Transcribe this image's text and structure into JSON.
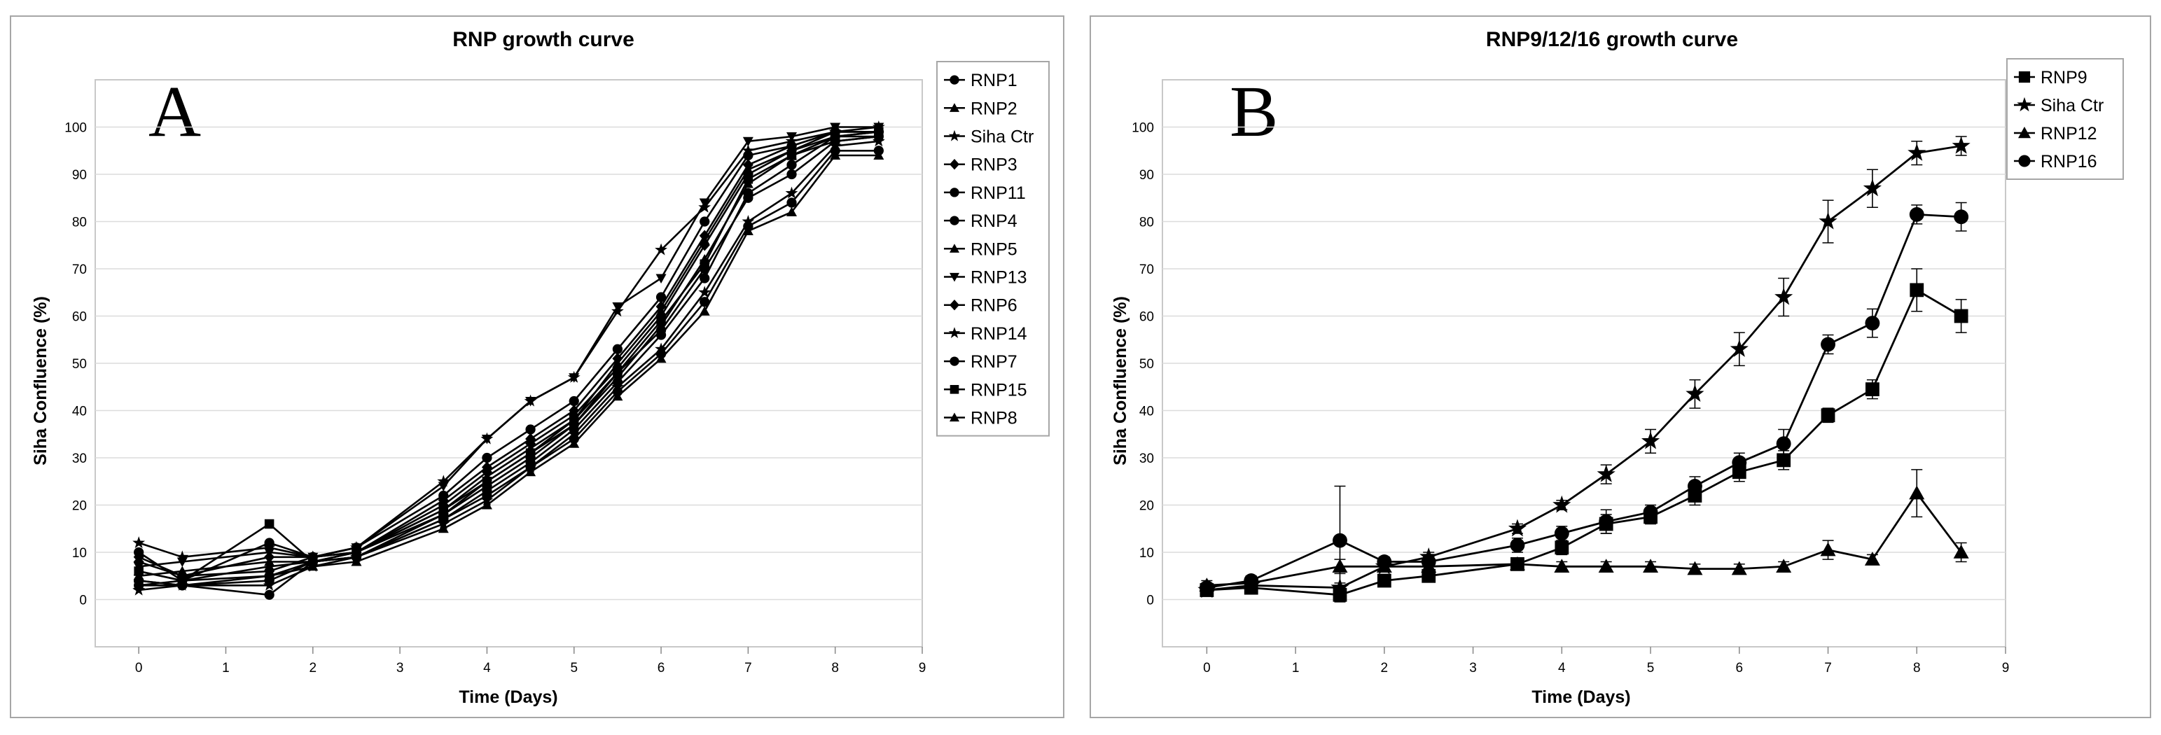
{
  "chart_data": [
    {
      "type": "line",
      "panel_letter": "A",
      "title": "RNP growth curve",
      "xlabel": "Time (Days)",
      "ylabel": "Siha Confluence (%)",
      "xlim": [
        -0.5,
        9
      ],
      "ylim": [
        -10,
        110
      ],
      "xticks": [
        0,
        1,
        2,
        3,
        4,
        5,
        6,
        7,
        8,
        9
      ],
      "yticks": [
        0,
        10,
        20,
        30,
        40,
        50,
        60,
        70,
        80,
        90,
        100
      ],
      "grid": true,
      "legend_position": "right",
      "x": [
        0,
        0.5,
        1.5,
        2,
        2.5,
        3.5,
        4,
        4.5,
        5,
        5.5,
        6,
        6.5,
        7,
        7.5,
        8,
        8.5
      ],
      "series": [
        {
          "name": "RNP1",
          "marker": "circle",
          "values": [
            4,
            3,
            4,
            8,
            9,
            17,
            23,
            29,
            36,
            46,
            56,
            68,
            86,
            92,
            98,
            99
          ]
        },
        {
          "name": "RNP2",
          "marker": "triangle",
          "values": [
            6,
            4,
            7,
            8,
            10,
            18,
            25,
            31,
            37,
            47,
            58,
            72,
            88,
            94,
            97,
            98
          ]
        },
        {
          "name": "Siha Ctr",
          "marker": "star",
          "values": [
            2,
            3,
            3,
            7,
            9,
            16,
            21,
            28,
            35,
            45,
            53,
            65,
            80,
            86,
            96,
            97
          ]
        },
        {
          "name": "RNP3",
          "marker": "diamond",
          "values": [
            8,
            5,
            6,
            9,
            10,
            20,
            27,
            33,
            39,
            49,
            60,
            75,
            90,
            95,
            99,
            99
          ]
        },
        {
          "name": "RNP11",
          "marker": "circle",
          "values": [
            10,
            4,
            12,
            9,
            11,
            22,
            30,
            36,
            42,
            53,
            64,
            80,
            94,
            96,
            99,
            99
          ]
        },
        {
          "name": "RNP4",
          "marker": "circle",
          "values": [
            3,
            3,
            5,
            8,
            9,
            18,
            24,
            30,
            37,
            48,
            57,
            70,
            85,
            90,
            97,
            98
          ]
        },
        {
          "name": "RNP5",
          "marker": "triangle",
          "values": [
            5,
            6,
            8,
            8,
            10,
            19,
            26,
            32,
            38,
            50,
            61,
            76,
            91,
            95,
            98,
            98
          ]
        },
        {
          "name": "RNP13",
          "marker": "triangle-down",
          "values": [
            7,
            8,
            10,
            9,
            11,
            24,
            34,
            42,
            47,
            62,
            68,
            84,
            97,
            98,
            100,
            100
          ]
        },
        {
          "name": "RNP6",
          "marker": "diamond",
          "values": [
            9,
            5,
            9,
            9,
            10,
            21,
            28,
            34,
            40,
            51,
            62,
            77,
            92,
            96,
            99,
            99
          ]
        },
        {
          "name": "RNP14",
          "marker": "star",
          "values": [
            12,
            9,
            11,
            9,
            11,
            25,
            34,
            42,
            47,
            61,
            74,
            83,
            95,
            97,
            99,
            100
          ]
        },
        {
          "name": "RNP7",
          "marker": "circle",
          "values": [
            4,
            3,
            1,
            8,
            9,
            17,
            22,
            28,
            34,
            44,
            52,
            63,
            79,
            84,
            95,
            95
          ]
        },
        {
          "name": "RNP15",
          "marker": "square",
          "values": [
            6,
            4,
            16,
            8,
            10,
            19,
            25,
            31,
            38,
            48,
            59,
            71,
            89,
            94,
            98,
            99
          ]
        },
        {
          "name": "RNP8",
          "marker": "triangle",
          "values": [
            3,
            4,
            5,
            7,
            8,
            15,
            20,
            27,
            33,
            43,
            51,
            61,
            78,
            82,
            94,
            94
          ]
        }
      ]
    },
    {
      "type": "line",
      "panel_letter": "B",
      "title": "RNP9/12/16 growth curve",
      "xlabel": "Time (Days)",
      "ylabel": "Siha Confluence (%)",
      "xlim": [
        -0.5,
        9
      ],
      "ylim": [
        -10,
        110
      ],
      "xticks": [
        0,
        1,
        2,
        3,
        4,
        5,
        6,
        7,
        8,
        9
      ],
      "yticks": [
        0,
        10,
        20,
        30,
        40,
        50,
        60,
        70,
        80,
        90,
        100
      ],
      "grid": true,
      "legend_position": "top-right",
      "x": [
        0,
        0.5,
        1.5,
        2,
        2.5,
        3.5,
        4,
        4.5,
        5,
        5.5,
        6,
        6.5,
        7,
        7.5,
        8,
        8.5
      ],
      "series": [
        {
          "name": "RNP9",
          "marker": "square",
          "values": [
            2,
            2.5,
            1,
            4,
            5,
            7.5,
            11,
            16,
            17.5,
            22,
            27,
            29.5,
            39,
            44.5,
            65.5,
            60
          ],
          "errors": [
            1,
            1,
            1.5,
            1,
            1,
            1,
            1.5,
            2,
            1.5,
            2,
            2,
            2,
            1.5,
            2,
            4.5,
            3.5
          ]
        },
        {
          "name": "Siha Ctr",
          "marker": "star",
          "values": [
            2,
            3,
            2.5,
            7,
            9,
            15,
            20,
            26.5,
            33.5,
            43.5,
            53,
            64,
            80,
            87,
            94.5,
            96
          ],
          "errors": [
            1,
            1,
            1,
            1,
            1,
            1,
            1,
            2,
            2.5,
            3,
            3.5,
            4,
            4.5,
            4,
            2.5,
            2
          ]
        },
        {
          "name": "RNP12",
          "marker": "triangle",
          "values": [
            3,
            3.5,
            7,
            7,
            7,
            7.5,
            7,
            7,
            7,
            6.5,
            6.5,
            7,
            10.5,
            8.5,
            22.5,
            10
          ],
          "errors": [
            1,
            1,
            1.5,
            1,
            1,
            1,
            1,
            1,
            1,
            1,
            1,
            1,
            2,
            1,
            5,
            2
          ]
        },
        {
          "name": "RNP16",
          "marker": "circle",
          "values": [
            2.5,
            4,
            12.5,
            8,
            8,
            11.5,
            14,
            16.5,
            18.5,
            24,
            29,
            33,
            54,
            58.5,
            81.5,
            81
          ],
          "errors": [
            1,
            1,
            11.5,
            1,
            1,
            1.5,
            1.5,
            2.5,
            1.5,
            2,
            2,
            3,
            2,
            3,
            2,
            3
          ]
        }
      ]
    }
  ]
}
